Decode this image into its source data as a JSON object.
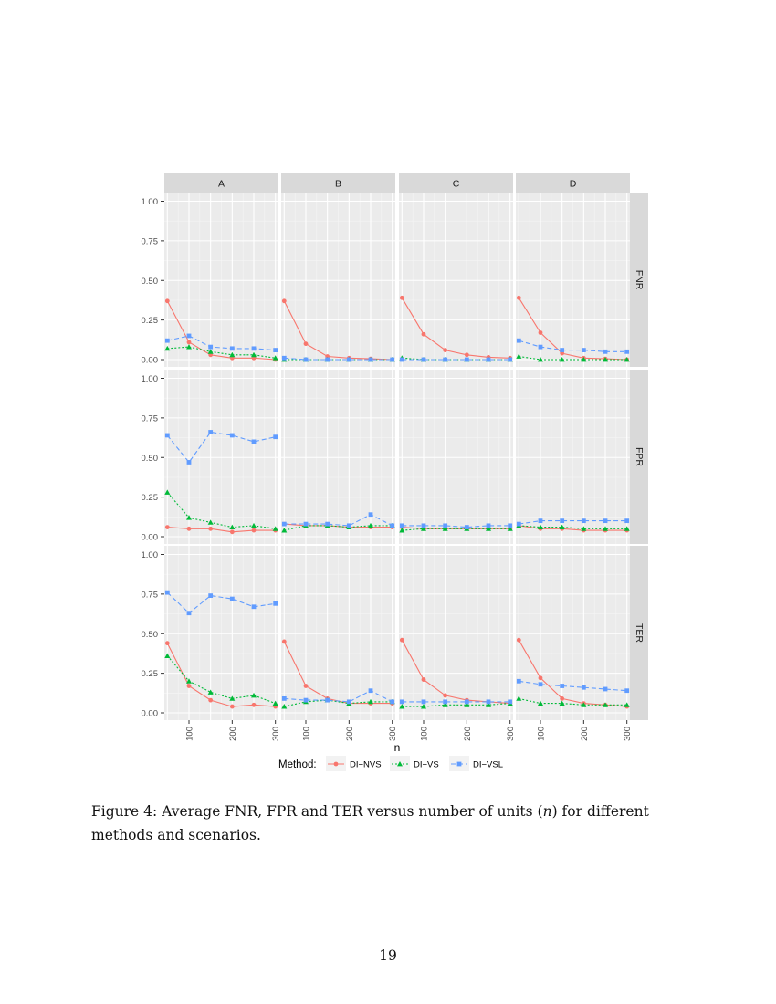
{
  "chart_data": {
    "type": "line",
    "facets": {
      "columns": [
        "A",
        "B",
        "C",
        "D"
      ],
      "rows": [
        "FNR",
        "FPR",
        "TER"
      ]
    },
    "x": [
      50,
      100,
      150,
      200,
      250,
      300
    ],
    "x_ticks": [
      100,
      200,
      300
    ],
    "xlabel": "n",
    "y_ticks": [
      "0.00",
      "0.25",
      "0.50",
      "0.75",
      "1.00"
    ],
    "ylim": [
      0,
      1
    ],
    "legend": {
      "title": "Method:",
      "position": "bottom"
    },
    "series": [
      {
        "name": "DI−NVS",
        "color": "#F8766D",
        "marker": "circle",
        "linestyle": "solid",
        "values": {
          "FNR": {
            "A": [
              0.37,
              0.11,
              0.03,
              0.01,
              0.01,
              0.0
            ],
            "B": [
              0.37,
              0.1,
              0.02,
              0.01,
              0.005,
              0.0
            ],
            "C": [
              0.39,
              0.16,
              0.06,
              0.03,
              0.015,
              0.01
            ],
            "D": [
              0.39,
              0.17,
              0.04,
              0.01,
              0.005,
              0.0
            ]
          },
          "FPR": {
            "A": [
              0.06,
              0.05,
              0.05,
              0.03,
              0.04,
              0.04
            ],
            "B": [
              0.08,
              0.07,
              0.07,
              0.06,
              0.06,
              0.06
            ],
            "C": [
              0.06,
              0.05,
              0.05,
              0.05,
              0.05,
              0.05
            ],
            "D": [
              0.07,
              0.05,
              0.05,
              0.04,
              0.04,
              0.04
            ]
          },
          "TER": {
            "A": [
              0.44,
              0.17,
              0.08,
              0.04,
              0.05,
              0.04
            ],
            "B": [
              0.45,
              0.17,
              0.09,
              0.06,
              0.06,
              0.06
            ],
            "C": [
              0.46,
              0.21,
              0.11,
              0.08,
              0.07,
              0.06
            ],
            "D": [
              0.46,
              0.22,
              0.09,
              0.06,
              0.05,
              0.04
            ]
          }
        }
      },
      {
        "name": "DI−VS",
        "color": "#00BA38",
        "marker": "triangle",
        "linestyle": "dotted",
        "values": {
          "FNR": {
            "A": [
              0.07,
              0.08,
              0.05,
              0.03,
              0.03,
              0.01
            ],
            "B": [
              0.0,
              0.0,
              0.0,
              0.0,
              0.0,
              0.0
            ],
            "C": [
              0.01,
              0.0,
              0.0,
              0.0,
              0.0,
              0.0
            ],
            "D": [
              0.02,
              0.0,
              0.0,
              0.0,
              0.0,
              0.0
            ]
          },
          "FPR": {
            "A": [
              0.28,
              0.12,
              0.09,
              0.06,
              0.07,
              0.05
            ],
            "B": [
              0.04,
              0.07,
              0.07,
              0.06,
              0.07,
              0.07
            ],
            "C": [
              0.04,
              0.05,
              0.05,
              0.05,
              0.05,
              0.05
            ],
            "D": [
              0.07,
              0.06,
              0.06,
              0.05,
              0.05,
              0.05
            ]
          },
          "TER": {
            "A": [
              0.36,
              0.2,
              0.13,
              0.09,
              0.11,
              0.06
            ],
            "B": [
              0.04,
              0.07,
              0.08,
              0.06,
              0.07,
              0.07
            ],
            "C": [
              0.04,
              0.04,
              0.05,
              0.05,
              0.05,
              0.06
            ],
            "D": [
              0.09,
              0.06,
              0.06,
              0.05,
              0.05,
              0.05
            ]
          }
        }
      },
      {
        "name": "DI−VSL",
        "color": "#619CFF",
        "marker": "square",
        "linestyle": "dashed",
        "values": {
          "FNR": {
            "A": [
              0.12,
              0.15,
              0.08,
              0.07,
              0.07,
              0.06
            ],
            "B": [
              0.01,
              0.0,
              0.0,
              0.0,
              0.0,
              0.0
            ],
            "C": [
              0.0,
              0.0,
              0.0,
              0.0,
              0.0,
              0.0
            ],
            "D": [
              0.12,
              0.08,
              0.06,
              0.06,
              0.05,
              0.05
            ]
          },
          "FPR": {
            "A": [
              0.64,
              0.47,
              0.66,
              0.64,
              0.6,
              0.63
            ],
            "B": [
              0.08,
              0.08,
              0.08,
              0.07,
              0.14,
              0.07
            ],
            "C": [
              0.07,
              0.07,
              0.07,
              0.06,
              0.07,
              0.07
            ],
            "D": [
              0.08,
              0.1,
              0.1,
              0.1,
              0.1,
              0.1
            ]
          },
          "TER": {
            "A": [
              0.76,
              0.63,
              0.74,
              0.72,
              0.67,
              0.69
            ],
            "B": [
              0.09,
              0.08,
              0.08,
              0.07,
              0.14,
              0.07
            ],
            "C": [
              0.07,
              0.07,
              0.07,
              0.07,
              0.07,
              0.07
            ],
            "D": [
              0.2,
              0.18,
              0.17,
              0.16,
              0.15,
              0.14
            ]
          }
        }
      }
    ]
  },
  "caption": {
    "prefix": "Figure 4:  Average FNR, FPR and TER versus number of units (",
    "var": "n",
    "suffix": ") for different methods and scenarios."
  },
  "page_number": "19"
}
